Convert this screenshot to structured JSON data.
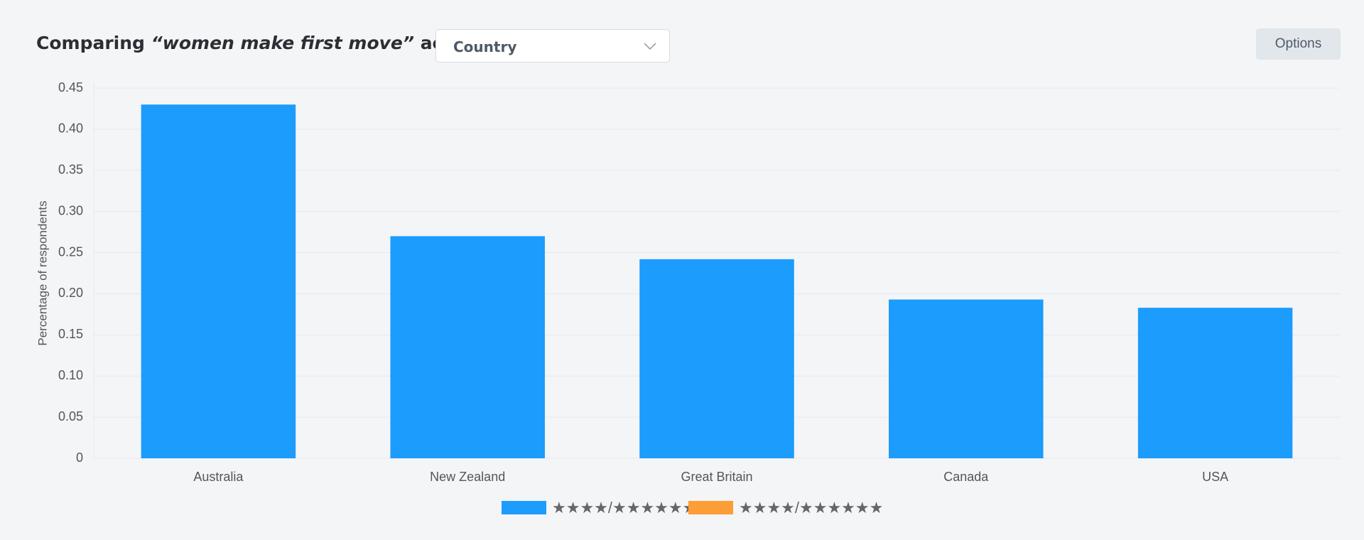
{
  "header": {
    "title_start": "Comparing",
    "title_emphasis": "“women make first move”",
    "title_end": "across",
    "dropdown": "Country",
    "options_button": "Options"
  },
  "chart_data": {
    "type": "bar",
    "y_label": "Percentage of respondents",
    "categories": [
      "Australia",
      "New Zealand",
      "Great Britain",
      "Canada",
      "USA"
    ],
    "series": [
      {
        "name": "★★★★/★★★★★★",
        "color": "#1c9cfc",
        "values": [
          0.43,
          0.27,
          0.242,
          0.193,
          0.183
        ]
      },
      {
        "name": "★★★★/★★★★★★",
        "color": "#fd9d36",
        "values": [
          null,
          null,
          null,
          null,
          null
        ]
      }
    ],
    "ylim": [
      0,
      0.45
    ],
    "yticks": [
      0,
      0.05,
      {
        "value": 0.1,
        "label": "0.10"
      },
      0.15,
      {
        "value": 0.2,
        "label": "0.20"
      },
      0.25,
      {
        "value": 0.3,
        "label": "0.30"
      },
      0.35,
      {
        "value": 0.4,
        "label": "0.40"
      },
      0.45
    ],
    "grid": true
  }
}
